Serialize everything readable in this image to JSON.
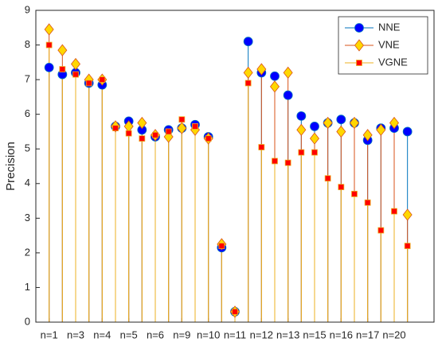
{
  "chart_data": {
    "type": "stem",
    "y_label": "Precision",
    "categories": [
      "n=1",
      null,
      "n=3",
      null,
      "n=4",
      null,
      "n=5",
      null,
      "n=6",
      null,
      "n=9",
      null,
      "n=10",
      null,
      "n=11",
      null,
      "n=12",
      null,
      "n=13",
      null,
      "n=15",
      null,
      "n=16",
      null,
      "n=17",
      null,
      "n=20",
      null
    ],
    "series": [
      {
        "name": "NNE",
        "color": "#0072bd",
        "marker": "circle",
        "marker_color": "#0000ff",
        "values": [
          7.35,
          7.15,
          7.2,
          6.9,
          6.85,
          5.65,
          5.8,
          5.55,
          5.35,
          5.55,
          5.6,
          5.7,
          5.35,
          2.15,
          0.3,
          8.1,
          7.2,
          7.1,
          6.55,
          5.95,
          5.65,
          5.75,
          5.85,
          5.75,
          5.25,
          5.6,
          5.6,
          5.5
        ]
      },
      {
        "name": "VNE",
        "color": "#d95319",
        "marker": "diamond",
        "marker_color": "#ffd700",
        "values": [
          8.45,
          7.85,
          7.45,
          7.0,
          7.0,
          5.65,
          5.65,
          5.75,
          5.4,
          5.35,
          5.6,
          5.55,
          5.3,
          2.25,
          0.3,
          7.2,
          7.3,
          6.8,
          7.2,
          5.55,
          5.3,
          5.75,
          5.5,
          5.75,
          5.4,
          5.55,
          5.75,
          3.1
        ]
      },
      {
        "name": "VGNE",
        "color": "#edb120",
        "marker": "square",
        "marker_color": "#ff0000",
        "values": [
          8.0,
          7.3,
          7.15,
          6.9,
          7.0,
          5.6,
          5.45,
          5.3,
          5.4,
          5.5,
          5.85,
          5.65,
          5.3,
          2.2,
          0.3,
          6.9,
          5.05,
          4.65,
          4.6,
          4.9,
          4.9,
          4.15,
          3.9,
          3.7,
          3.45,
          2.65,
          3.2,
          2.2
        ]
      }
    ],
    "ylim": [
      0,
      9
    ],
    "yticks": [
      0,
      1,
      2,
      3,
      4,
      5,
      6,
      7,
      8,
      9
    ],
    "legend": "top-right"
  }
}
